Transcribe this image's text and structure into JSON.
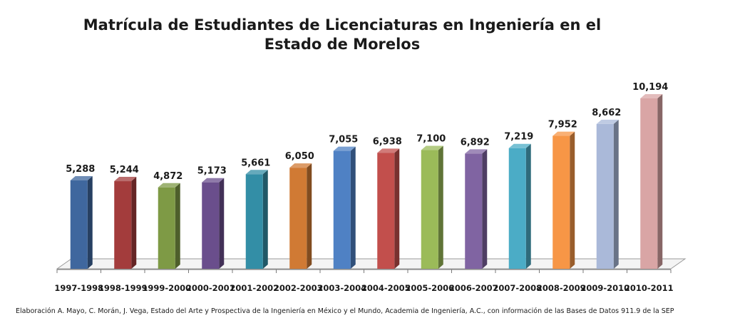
{
  "chart_data": {
    "type": "bar",
    "title": "Matrícula de Estudiantes de Licenciaturas en Ingeniería en el Estado de Morelos",
    "categories": [
      "1997-1998",
      "1998-1999",
      "1999-2000",
      "2000-2001",
      "2001-2002",
      "2002-2003",
      "2003-2004",
      "2004-2005",
      "2005-2006",
      "2006-2007",
      "2007-2008",
      "2008-2009",
      "2009-2010",
      "2010-2011"
    ],
    "values": [
      5288,
      5244,
      4872,
      5173,
      5661,
      6050,
      7055,
      6938,
      7100,
      6892,
      7219,
      7952,
      8662,
      10194
    ],
    "data_labels": [
      "5,288",
      "5,244",
      "4,872",
      "5,173",
      "5,661",
      "6,050",
      "7,055",
      "6,938",
      "7,100",
      "6,892",
      "7,219",
      "7,952",
      "8,662",
      "10,194"
    ],
    "colors": [
      "#3F679E",
      "#A33C3C",
      "#7E9A45",
      "#6A4E8C",
      "#338EA6",
      "#D07A34",
      "#4F81C4",
      "#C24F4C",
      "#9BBB59",
      "#8064A2",
      "#4BACC6",
      "#F79646",
      "#AAB9D9",
      "#D9A5A5"
    ],
    "xlabel": "",
    "ylabel": "",
    "grid": false,
    "legend": "none",
    "style": "3d-column"
  },
  "source_note": "Elaboración A. Mayo, C. Morán, J. Vega, Estado del Arte y Prospectiva de la Ingeniería en México y el Mundo, Academia de Ingeniería, A.C., con información de las Bases de Datos  911.9  de la SEP"
}
